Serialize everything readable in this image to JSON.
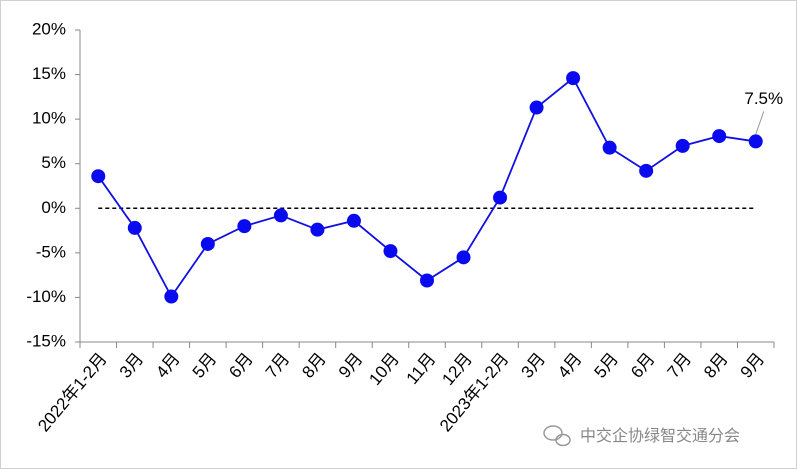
{
  "chart_data": {
    "type": "line",
    "categories": [
      "2022年1-2月",
      "3月",
      "4月",
      "5月",
      "6月",
      "7月",
      "8月",
      "9月",
      "10月",
      "11月",
      "12月",
      "2023年1-2月",
      "3月",
      "4月",
      "5月",
      "6月",
      "7月",
      "8月",
      "9月"
    ],
    "series": [
      {
        "color": "#1010e0",
        "values": [
          3.6,
          -2.2,
          -9.9,
          -4.0,
          -2.0,
          -0.8,
          -2.4,
          -1.4,
          -4.8,
          -8.1,
          -5.5,
          1.2,
          11.3,
          14.6,
          6.8,
          4.2,
          7.0,
          8.1,
          7.5
        ],
        "value_labels": [
          null,
          null,
          null,
          null,
          null,
          null,
          null,
          null,
          null,
          null,
          null,
          null,
          null,
          null,
          null,
          null,
          null,
          null,
          "7.5%"
        ]
      }
    ],
    "ylim": [
      -15,
      20
    ],
    "yticks": [
      {
        "value": -15,
        "label": "-15%"
      },
      {
        "value": -10,
        "label": "-10%"
      },
      {
        "value": -5,
        "label": "-5%"
      },
      {
        "value": 0,
        "label": "0%"
      },
      {
        "value": 5,
        "label": "5%"
      },
      {
        "value": 10,
        "label": "10%"
      },
      {
        "value": 15,
        "label": "15%"
      },
      {
        "value": 20,
        "label": "20%"
      }
    ],
    "reference_line": 0,
    "watermark": "中交企协绿智交通分会"
  }
}
